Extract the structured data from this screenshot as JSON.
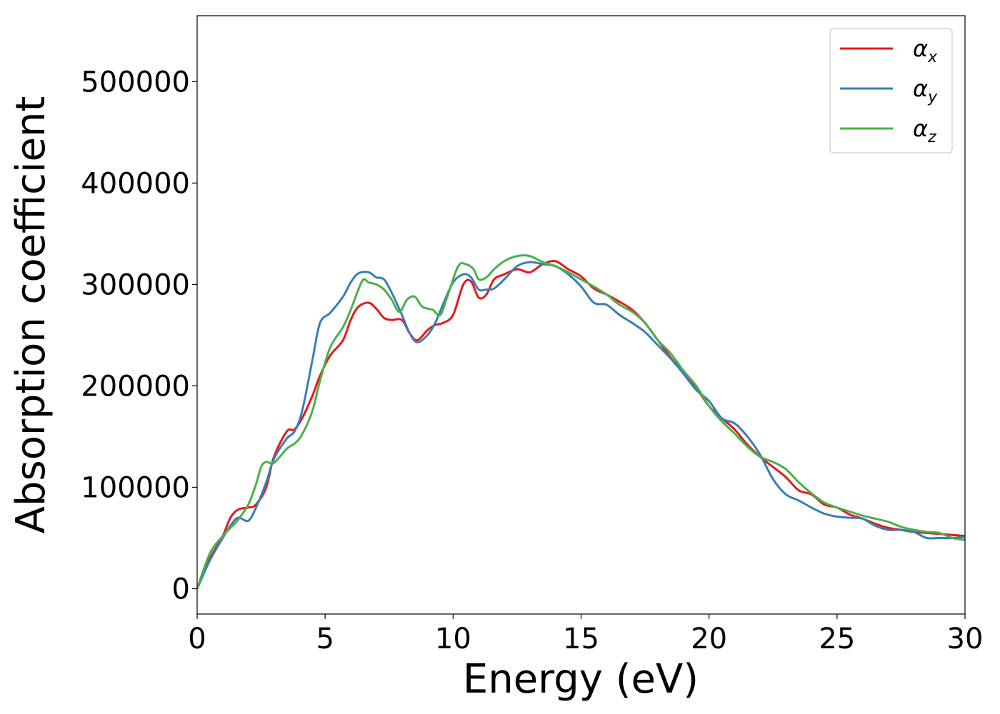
{
  "chart_data": {
    "type": "line",
    "title": "",
    "xlabel": "Energy (eV)",
    "ylabel": "Absorption coefficient",
    "xlim": [
      0,
      30
    ],
    "ylim": [
      -25000,
      565000
    ],
    "xticks": [
      0,
      5,
      10,
      15,
      20,
      25,
      30
    ],
    "xtick_labels": [
      "0",
      "5",
      "10",
      "15",
      "20",
      "25",
      "30"
    ],
    "yticks": [
      0,
      100000,
      200000,
      300000,
      400000,
      500000
    ],
    "ytick_labels": [
      "0",
      "100000",
      "200000",
      "300000",
      "400000",
      "500000"
    ],
    "grid": false,
    "legend_position": "top-right",
    "series": [
      {
        "name": "αx",
        "symbol": "α",
        "subscript": "x",
        "color": "#e41a1c",
        "x": [
          0,
          0.5,
          1.0,
          1.3,
          1.6,
          2.0,
          2.3,
          2.7,
          3.0,
          3.5,
          3.8,
          4.1,
          4.5,
          4.8,
          5.2,
          5.7,
          6.0,
          6.3,
          6.7,
          7.0,
          7.3,
          7.6,
          8.0,
          8.3,
          8.6,
          9.0,
          9.3,
          9.6,
          10.0,
          10.4,
          10.7,
          11.0,
          11.3,
          11.6,
          12.0,
          12.5,
          13.0,
          13.5,
          14.0,
          14.5,
          15.0,
          15.5,
          16.0,
          16.5,
          17.0,
          17.5,
          18.0,
          18.5,
          19.0,
          19.5,
          20.0,
          20.5,
          21.0,
          21.5,
          22.0,
          22.5,
          23.0,
          23.5,
          24.0,
          24.5,
          25.0,
          25.5,
          26.0,
          26.5,
          27.0,
          27.5,
          28.0,
          28.5,
          29.0,
          29.5,
          30.0
        ],
        "y": [
          0,
          30000,
          52000,
          70000,
          78000,
          80000,
          83000,
          100000,
          130000,
          155000,
          157000,
          168000,
          190000,
          210000,
          230000,
          245000,
          265000,
          278000,
          282000,
          276000,
          267000,
          265000,
          265000,
          252000,
          245000,
          255000,
          260000,
          262000,
          270000,
          300000,
          303000,
          287000,
          290000,
          305000,
          310000,
          315000,
          312000,
          320000,
          323000,
          315000,
          308000,
          296000,
          290000,
          283000,
          275000,
          262000,
          245000,
          228000,
          213000,
          198000,
          180000,
          168000,
          157000,
          142000,
          130000,
          120000,
          110000,
          97000,
          93000,
          83000,
          80000,
          73000,
          69000,
          64000,
          60000,
          58000,
          56000,
          55000,
          54000,
          53000,
          52000
        ]
      },
      {
        "name": "αy",
        "symbol": "α",
        "subscript": "y",
        "color": "#377eb8",
        "x": [
          0,
          0.5,
          1.0,
          1.3,
          1.6,
          2.0,
          2.3,
          2.7,
          3.0,
          3.5,
          3.8,
          4.1,
          4.5,
          4.8,
          5.2,
          5.7,
          6.0,
          6.3,
          6.7,
          7.0,
          7.3,
          7.6,
          8.0,
          8.3,
          8.6,
          9.0,
          9.3,
          9.6,
          10.0,
          10.4,
          10.7,
          11.0,
          11.3,
          11.6,
          12.0,
          12.5,
          13.0,
          13.5,
          14.0,
          14.5,
          15.0,
          15.5,
          16.0,
          16.5,
          17.0,
          17.5,
          18.0,
          18.5,
          19.0,
          19.5,
          20.0,
          20.5,
          21.0,
          21.5,
          22.0,
          22.5,
          23.0,
          23.5,
          24.0,
          24.5,
          25.0,
          25.5,
          26.0,
          26.5,
          27.0,
          27.5,
          28.0,
          28.5,
          29.0,
          29.5,
          30.0
        ],
        "y": [
          0,
          28000,
          50000,
          62000,
          70000,
          67000,
          80000,
          105000,
          128000,
          148000,
          155000,
          175000,
          225000,
          262000,
          272000,
          288000,
          302000,
          311000,
          312000,
          307000,
          305000,
          292000,
          270000,
          252000,
          243000,
          250000,
          262000,
          280000,
          302000,
          310000,
          307000,
          295000,
          295000,
          296000,
          305000,
          318000,
          322000,
          320000,
          318000,
          310000,
          298000,
          282000,
          280000,
          270000,
          262000,
          253000,
          240000,
          227000,
          212000,
          196000,
          185000,
          168000,
          163000,
          150000,
          132000,
          108000,
          93000,
          87000,
          80000,
          74000,
          71000,
          70000,
          69000,
          62000,
          58000,
          58000,
          56000,
          50000,
          50000,
          50000,
          51000
        ]
      },
      {
        "name": "αz",
        "symbol": "α",
        "subscript": "z",
        "color": "#4daf4a",
        "x": [
          0,
          0.5,
          1.0,
          1.3,
          1.6,
          2.0,
          2.3,
          2.5,
          2.7,
          3.0,
          3.5,
          3.8,
          4.1,
          4.5,
          4.8,
          5.2,
          5.7,
          6.0,
          6.3,
          6.5,
          6.7,
          7.0,
          7.3,
          7.6,
          7.9,
          8.2,
          8.5,
          8.8,
          9.2,
          9.5,
          9.8,
          10.2,
          10.5,
          10.8,
          11.0,
          11.3,
          11.6,
          12.0,
          12.5,
          13.0,
          13.5,
          14.0,
          14.5,
          15.0,
          15.5,
          16.0,
          16.5,
          17.0,
          17.5,
          18.0,
          18.5,
          19.0,
          19.5,
          20.0,
          20.5,
          21.0,
          21.5,
          22.0,
          22.5,
          23.0,
          23.5,
          24.0,
          24.5,
          25.0,
          25.5,
          26.0,
          26.5,
          27.0,
          27.5,
          28.0,
          28.5,
          29.0,
          29.5,
          30.0
        ],
        "y": [
          0,
          35000,
          52000,
          60000,
          68000,
          83000,
          103000,
          120000,
          125000,
          124000,
          138000,
          143000,
          152000,
          175000,
          205000,
          238000,
          258000,
          275000,
          295000,
          305000,
          302000,
          300000,
          295000,
          285000,
          273000,
          285000,
          288000,
          278000,
          275000,
          270000,
          290000,
          318000,
          320000,
          315000,
          305000,
          307000,
          315000,
          323000,
          328000,
          328000,
          322000,
          318000,
          312000,
          305000,
          298000,
          290000,
          280000,
          273000,
          262000,
          245000,
          232000,
          215000,
          200000,
          180000,
          165000,
          153000,
          140000,
          130000,
          125000,
          118000,
          105000,
          94000,
          85000,
          80000,
          76000,
          72000,
          69000,
          66000,
          61000,
          58000,
          56000,
          55000,
          50000,
          48000
        ]
      }
    ]
  }
}
